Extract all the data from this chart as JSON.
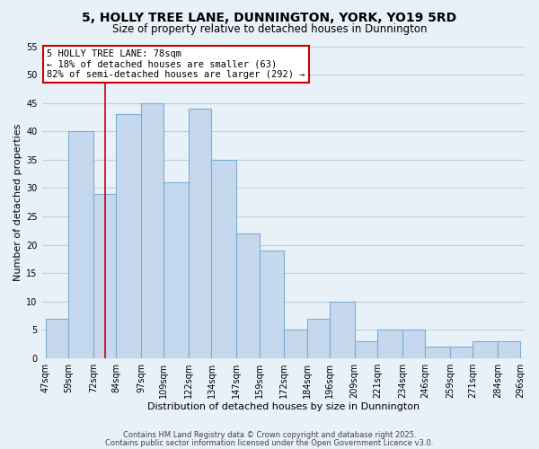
{
  "title": "5, HOLLY TREE LANE, DUNNINGTON, YORK, YO19 5RD",
  "subtitle": "Size of property relative to detached houses in Dunnington",
  "xlabel": "Distribution of detached houses by size in Dunnington",
  "ylabel": "Number of detached properties",
  "bar_edges": [
    47,
    59,
    72,
    84,
    97,
    109,
    122,
    134,
    147,
    159,
    172,
    184,
    196,
    209,
    221,
    234,
    246,
    259,
    271,
    284,
    296
  ],
  "bar_heights": [
    7,
    40,
    29,
    43,
    45,
    31,
    44,
    35,
    22,
    19,
    5,
    7,
    10,
    3,
    5,
    5,
    2,
    2,
    3,
    3
  ],
  "bar_labels": [
    "47sqm",
    "59sqm",
    "72sqm",
    "84sqm",
    "97sqm",
    "109sqm",
    "122sqm",
    "134sqm",
    "147sqm",
    "159sqm",
    "172sqm",
    "184sqm",
    "196sqm",
    "209sqm",
    "221sqm",
    "234sqm",
    "246sqm",
    "259sqm",
    "271sqm",
    "284sqm",
    "296sqm"
  ],
  "bar_color": "#c5d8ed",
  "bar_edge_color": "#7bafd4",
  "grid_color": "#c0d0e0",
  "background_color": "#e8f0f8",
  "vline_x": 78,
  "vline_color": "#cc0000",
  "annotation_line1": "5 HOLLY TREE LANE: 78sqm",
  "annotation_line2": "← 18% of detached houses are smaller (63)",
  "annotation_line3": "82% of semi-detached houses are larger (292) →",
  "annotation_box_color": "white",
  "annotation_box_edge": "#cc0000",
  "ylim": [
    0,
    55
  ],
  "yticks": [
    0,
    5,
    10,
    15,
    20,
    25,
    30,
    35,
    40,
    45,
    50,
    55
  ],
  "footnote1": "Contains HM Land Registry data © Crown copyright and database right 2025.",
  "footnote2": "Contains public sector information licensed under the Open Government Licence v3.0.",
  "title_fontsize": 10,
  "subtitle_fontsize": 8.5,
  "axis_label_fontsize": 8,
  "tick_fontsize": 7,
  "annotation_fontsize": 7.5,
  "footnote_fontsize": 6
}
